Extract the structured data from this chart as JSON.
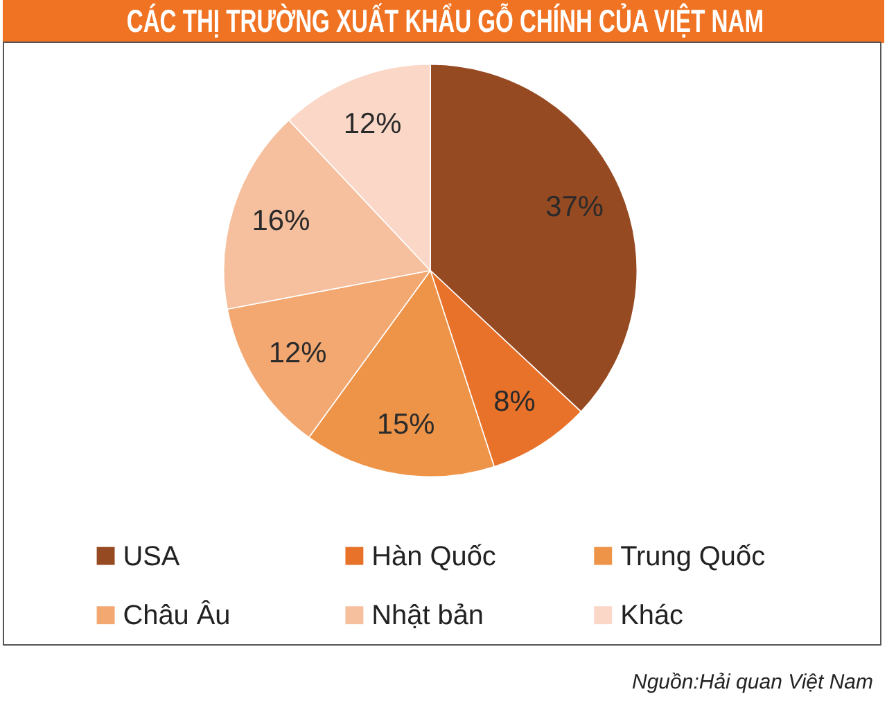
{
  "chart_data": {
    "type": "pie",
    "title": "CÁC THỊ TRƯỜNG XUẤT KHẨU GỖ CHÍNH CỦA VIỆT NAM",
    "categories": [
      "USA",
      "Hàn Quốc",
      "Trung Quốc",
      "Châu Âu",
      "Nhật bản",
      "Khác"
    ],
    "values": [
      37,
      8,
      15,
      12,
      16,
      12
    ],
    "colors": [
      "#964a22",
      "#e8722a",
      "#ee9448",
      "#f3a872",
      "#f6bf9d",
      "#fad7c6"
    ],
    "value_labels": [
      "37%",
      "8%",
      "15%",
      "12%",
      "16%",
      "12%"
    ],
    "legend": "bottom",
    "annotations": [
      "Nguồn:Hải quan Việt Nam"
    ]
  }
}
